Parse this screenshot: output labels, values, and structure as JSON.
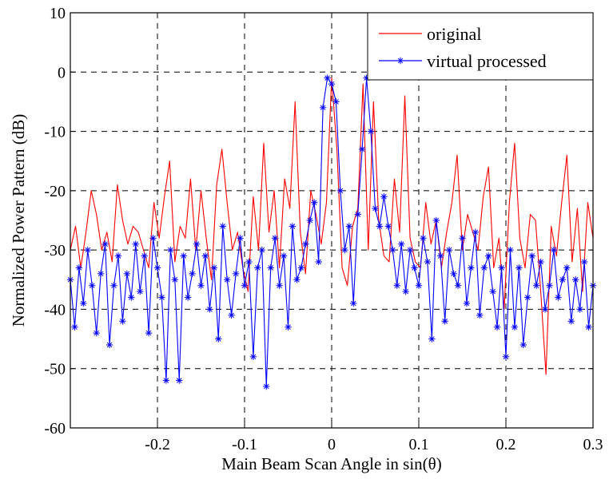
{
  "chart_data": {
    "type": "line",
    "xlabel": "Main Beam Scan Angle in sin(θ)",
    "ylabel": "Normalized Power Pattern (dB)",
    "xlim": [
      -0.3,
      0.3
    ],
    "ylim": [
      -60,
      10
    ],
    "xticks": [
      -0.2,
      -0.1,
      0,
      0.1,
      0.2,
      0.3
    ],
    "xtick_labels": [
      "-0.2",
      "-0.1",
      "0",
      "0.1",
      "0.2",
      "0.3"
    ],
    "yticks": [
      -60,
      -50,
      -40,
      -30,
      -20,
      -10,
      0,
      10
    ],
    "ytick_labels": [
      "-60",
      "-50",
      "-40",
      "-30",
      "-20",
      "-10",
      "0",
      "10"
    ],
    "grid": true,
    "legend_position": "top-right",
    "series": [
      {
        "name": "original",
        "color": "#ff0000",
        "marker": "none",
        "x": [
          -0.3,
          -0.294,
          -0.288,
          -0.282,
          -0.276,
          -0.27,
          -0.264,
          -0.258,
          -0.252,
          -0.246,
          -0.24,
          -0.234,
          -0.228,
          -0.222,
          -0.216,
          -0.21,
          -0.204,
          -0.198,
          -0.192,
          -0.186,
          -0.18,
          -0.174,
          -0.168,
          -0.162,
          -0.156,
          -0.15,
          -0.144,
          -0.138,
          -0.132,
          -0.126,
          -0.12,
          -0.114,
          -0.108,
          -0.102,
          -0.096,
          -0.09,
          -0.084,
          -0.078,
          -0.072,
          -0.066,
          -0.06,
          -0.054,
          -0.048,
          -0.042,
          -0.036,
          -0.03,
          -0.024,
          -0.018,
          -0.012,
          -0.006,
          0.0,
          0.006,
          0.012,
          0.018,
          0.024,
          0.03,
          0.036,
          0.042,
          0.048,
          0.054,
          0.06,
          0.066,
          0.072,
          0.078,
          0.084,
          0.09,
          0.096,
          0.102,
          0.108,
          0.114,
          0.12,
          0.126,
          0.132,
          0.138,
          0.144,
          0.15,
          0.156,
          0.162,
          0.168,
          0.174,
          0.18,
          0.186,
          0.192,
          0.198,
          0.204,
          0.21,
          0.216,
          0.222,
          0.228,
          0.234,
          0.24,
          0.246,
          0.252,
          0.258,
          0.264,
          0.27,
          0.276,
          0.282,
          0.288,
          0.294,
          0.3
        ],
        "y": [
          -30,
          -26,
          -33,
          -27,
          -20,
          -24,
          -30,
          -27,
          -32,
          -19,
          -25,
          -29,
          -26,
          -27,
          -30,
          -33,
          -22,
          -28,
          -21,
          -15,
          -32,
          -26,
          -28,
          -18,
          -30,
          -20,
          -28,
          -35,
          -19,
          -13,
          -22,
          -30,
          -27,
          -33,
          -37,
          -21,
          -30,
          -12,
          -27,
          -20,
          -33,
          -18,
          -23,
          -5,
          -27,
          -34,
          -20,
          -24,
          -29,
          -22,
          -1,
          -13,
          -33,
          -36,
          -26,
          -23,
          -2,
          -30,
          -5,
          -25,
          -31,
          -32,
          -18,
          -27,
          -4,
          -28,
          -32,
          -33,
          -22,
          -29,
          -25,
          -33,
          -27,
          -22,
          -14,
          -30,
          -24,
          -27,
          -30,
          -21,
          -16,
          -33,
          -28,
          -40,
          -22,
          -12,
          -28,
          -33,
          -24,
          -25,
          -37,
          -51,
          -26,
          -31,
          -22,
          -14,
          -32,
          -23,
          -37,
          -22,
          -28
        ]
      },
      {
        "name": "virtual processed",
        "color": "#0000ff",
        "marker": "asterisk",
        "x": [
          -0.3,
          -0.295,
          -0.29,
          -0.285,
          -0.28,
          -0.275,
          -0.27,
          -0.265,
          -0.26,
          -0.255,
          -0.25,
          -0.245,
          -0.24,
          -0.235,
          -0.23,
          -0.225,
          -0.22,
          -0.215,
          -0.21,
          -0.205,
          -0.2,
          -0.195,
          -0.19,
          -0.185,
          -0.18,
          -0.175,
          -0.17,
          -0.165,
          -0.16,
          -0.155,
          -0.15,
          -0.145,
          -0.14,
          -0.135,
          -0.13,
          -0.125,
          -0.12,
          -0.115,
          -0.11,
          -0.105,
          -0.1,
          -0.095,
          -0.09,
          -0.085,
          -0.08,
          -0.075,
          -0.07,
          -0.065,
          -0.06,
          -0.055,
          -0.05,
          -0.045,
          -0.04,
          -0.035,
          -0.03,
          -0.025,
          -0.02,
          -0.015,
          -0.01,
          -0.005,
          0.0,
          0.005,
          0.01,
          0.015,
          0.02,
          0.025,
          0.03,
          0.035,
          0.04,
          0.045,
          0.05,
          0.055,
          0.06,
          0.065,
          0.07,
          0.075,
          0.08,
          0.085,
          0.09,
          0.095,
          0.1,
          0.105,
          0.11,
          0.115,
          0.12,
          0.125,
          0.13,
          0.135,
          0.14,
          0.145,
          0.15,
          0.155,
          0.16,
          0.165,
          0.17,
          0.175,
          0.18,
          0.185,
          0.19,
          0.195,
          0.2,
          0.205,
          0.21,
          0.215,
          0.22,
          0.225,
          0.23,
          0.235,
          0.24,
          0.245,
          0.25,
          0.255,
          0.26,
          0.265,
          0.27,
          0.275,
          0.28,
          0.285,
          0.29,
          0.295,
          0.3
        ],
        "y": [
          -35,
          -43,
          -33,
          -39,
          -30,
          -36,
          -44,
          -34,
          -29,
          -46,
          -36,
          -31,
          -42,
          -34,
          -38,
          -29,
          -37,
          -31,
          -44,
          -28,
          -33,
          -38,
          -52,
          -30,
          -35,
          -52,
          -31,
          -38,
          -34,
          -29,
          -36,
          -31,
          -40,
          -33,
          -45,
          -26,
          -35,
          -41,
          -34,
          -28,
          -36,
          -32,
          -48,
          -33,
          -30,
          -53,
          -33,
          -28,
          -36,
          -31,
          -43,
          -26,
          -35,
          -33,
          -29,
          -25,
          -22,
          -32,
          -6,
          -1,
          -2,
          -5,
          -20,
          -30,
          -26,
          -39,
          -24,
          -13,
          -1,
          -10,
          -23,
          -26,
          -21,
          -26,
          -30,
          -36,
          -29,
          -37,
          -30,
          -33,
          -36,
          -28,
          -32,
          -45,
          -25,
          -31,
          -42,
          -30,
          -34,
          -36,
          -28,
          -39,
          -33,
          -27,
          -41,
          -33,
          -31,
          -37,
          -43,
          -33,
          -48,
          -30,
          -43,
          -33,
          -46,
          -38,
          -31,
          -36,
          -32,
          -40,
          -36,
          -30,
          -38,
          -35,
          -33,
          -42,
          -35,
          -40,
          -32,
          -43,
          -36
        ]
      }
    ]
  }
}
